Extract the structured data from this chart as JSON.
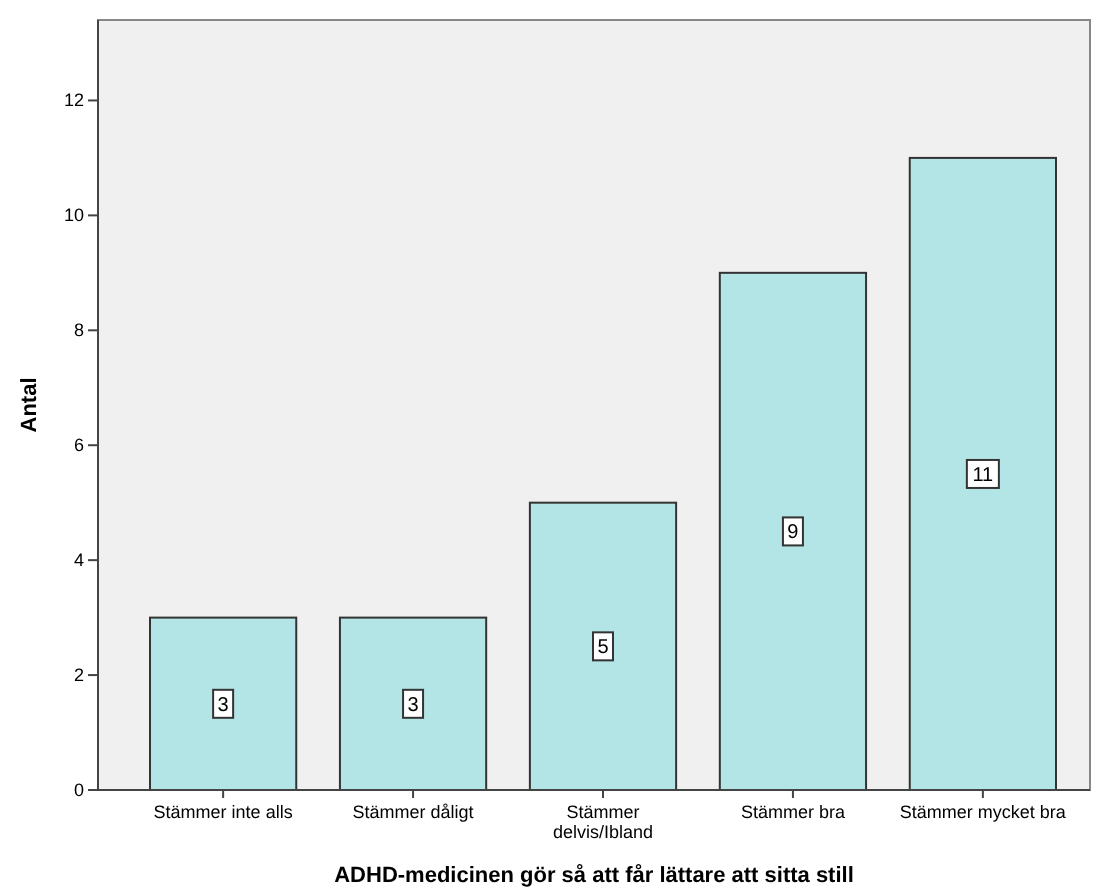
{
  "chart_data": {
    "type": "bar",
    "xlabel": "ADHD-medicinen gör så att får lättare att sitta still",
    "ylabel": "Antal",
    "categories": [
      "Stämmer inte alls",
      "Stämmer dåligt",
      "Stämmer delvis/Ibland",
      "Stämmer bra",
      "Stämmer mycket bra"
    ],
    "values": [
      3,
      3,
      5,
      9,
      11
    ],
    "color": "#b3e5e6",
    "data_labels": true,
    "ylim": [
      0,
      13.4
    ],
    "yticks": [
      0,
      2,
      4,
      6,
      8,
      10,
      12
    ]
  }
}
